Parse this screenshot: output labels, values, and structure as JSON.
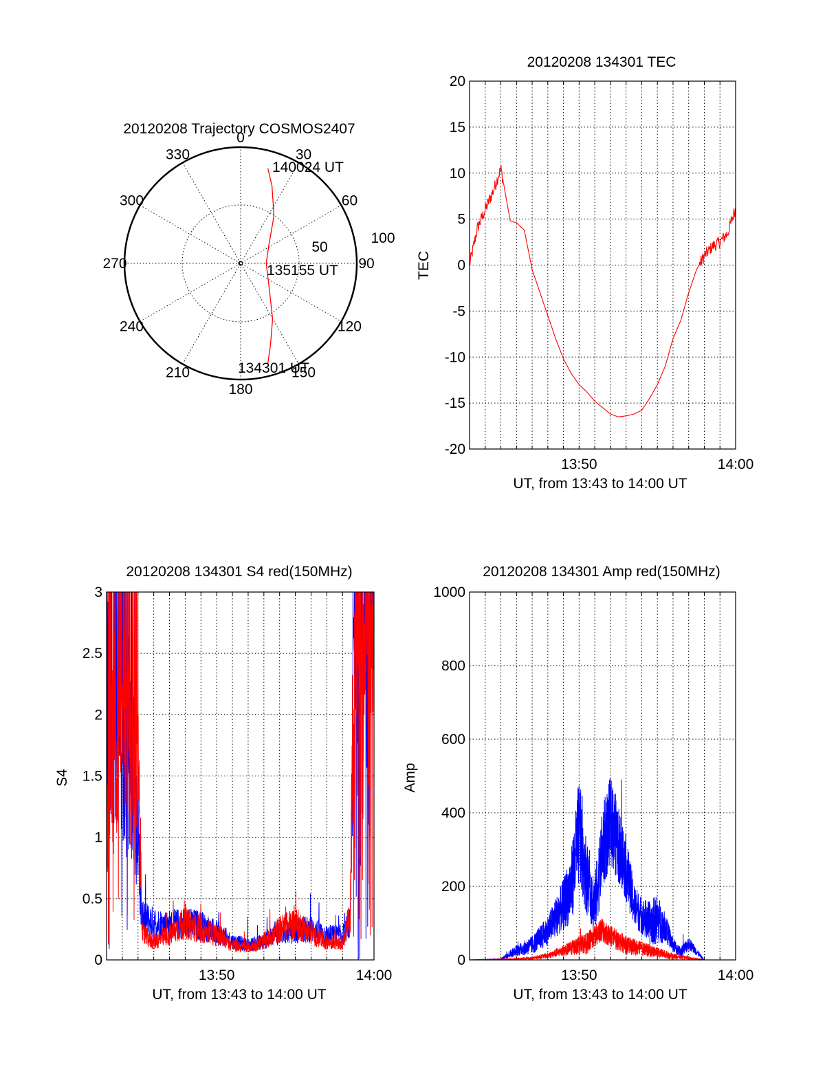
{
  "chart_data": [
    {
      "id": "trajectory",
      "type": "polar",
      "title": "20120208 Trajectory COSMOS2407",
      "azimuth_labels": [
        "0",
        "30",
        "60",
        "90",
        "120",
        "150",
        "180",
        "210",
        "240",
        "270",
        "300",
        "330"
      ],
      "radial_labels": [
        "50",
        "100"
      ],
      "track_color": "#ff0000",
      "track": [
        {
          "az": 165,
          "r": 90
        },
        {
          "az": 160,
          "r": 75
        },
        {
          "az": 150,
          "r": 55
        },
        {
          "az": 130,
          "r": 32
        },
        {
          "az": 90,
          "r": 22
        },
        {
          "az": 55,
          "r": 30
        },
        {
          "az": 35,
          "r": 50
        },
        {
          "az": 22,
          "r": 72
        },
        {
          "az": 16,
          "r": 85
        }
      ],
      "annotations": [
        {
          "text": "140024 UT",
          "at": "end"
        },
        {
          "text": "135155 UT",
          "at": "middle"
        },
        {
          "text": "134301 UT",
          "at": "start"
        }
      ]
    },
    {
      "id": "tec",
      "type": "line",
      "title": "20120208 134301 TEC",
      "ylabel": "TEC",
      "xlabel": "UT, from 13:43 to 14:00 UT",
      "x_ticks": [
        "13:50",
        "14:00"
      ],
      "y_ticks": [
        "20",
        "15",
        "10",
        "5",
        "0",
        "-5",
        "-10",
        "-15",
        "-20"
      ],
      "xlim": [
        43,
        60
      ],
      "ylim": [
        -20,
        20
      ],
      "grid": true,
      "series": [
        {
          "color": "#ff0000",
          "noisy_until": 45.2,
          "noisy_after": 57.7,
          "x": [
            43.0,
            43.5,
            44.0,
            44.5,
            45.0,
            45.6,
            46.0,
            46.5,
            47.0,
            47.5,
            48.0,
            48.5,
            49.0,
            49.5,
            50.0,
            50.5,
            51.0,
            51.5,
            52.0,
            52.5,
            53.0,
            53.5,
            54.0,
            54.5,
            55.0,
            55.5,
            56.0,
            56.5,
            57.0,
            57.5,
            58.0,
            58.5,
            59.0,
            59.5,
            60.0
          ],
          "y": [
            0,
            4,
            6,
            8,
            10.5,
            4.8,
            4.6,
            3.8,
            -0.5,
            -3.0,
            -5.5,
            -8.0,
            -10.2,
            -11.8,
            -13.0,
            -13.8,
            -14.8,
            -15.5,
            -16.2,
            -16.5,
            -16.4,
            -16.2,
            -15.8,
            -14.5,
            -13.0,
            -11.0,
            -8.0,
            -6.0,
            -3.0,
            -0.5,
            1.0,
            2.0,
            2.5,
            3.5,
            6.2
          ]
        }
      ]
    },
    {
      "id": "s4",
      "type": "line",
      "title": "20120208 134301 S4 red(150MHz)",
      "ylabel": "S4",
      "xlabel": "UT, from 13:43 to 14:00 UT",
      "x_ticks": [
        "13:50",
        "14:00"
      ],
      "y_ticks": [
        "3",
        "2.5",
        "2",
        "1.5",
        "1",
        "0.5",
        "0"
      ],
      "xlim": [
        43,
        60
      ],
      "ylim": [
        0,
        3
      ],
      "grid": true,
      "series": [
        {
          "color": "#0000ff",
          "edge_chaos": [
            [
              43.0,
              44.9
            ],
            [
              58.7,
              60.0
            ]
          ],
          "x": [
            43.0,
            44.0,
            44.9,
            45.2,
            46.0,
            47.0,
            48.0,
            49.0,
            50.0,
            51.0,
            52.0,
            53.0,
            54.0,
            55.0,
            56.0,
            57.0,
            58.0,
            58.5,
            58.7,
            60.0
          ],
          "y": [
            1.5,
            1.7,
            1.4,
            0.35,
            0.3,
            0.28,
            0.3,
            0.28,
            0.22,
            0.15,
            0.12,
            0.15,
            0.22,
            0.24,
            0.25,
            0.2,
            0.2,
            0.3,
            2.5,
            2.8
          ]
        },
        {
          "color": "#ff0000",
          "edge_chaos": [
            [
              43.0,
              45.0
            ],
            [
              58.7,
              60.0
            ]
          ],
          "x": [
            43.0,
            44.0,
            45.0,
            45.3,
            46.0,
            47.0,
            48.0,
            49.0,
            50.0,
            51.0,
            52.0,
            53.0,
            54.0,
            55.0,
            56.0,
            57.0,
            58.0,
            58.5,
            58.7,
            60.0
          ],
          "y": [
            1.5,
            1.8,
            1.5,
            0.2,
            0.15,
            0.2,
            0.3,
            0.25,
            0.2,
            0.12,
            0.1,
            0.15,
            0.25,
            0.3,
            0.22,
            0.14,
            0.15,
            0.35,
            2.5,
            2.8
          ]
        }
      ]
    },
    {
      "id": "amp",
      "type": "line",
      "title": "20120208 134301 Amp red(150MHz)",
      "ylabel": "Amp",
      "xlabel": "UT, from 13:43 to 14:00 UT",
      "x_ticks": [
        "13:50",
        "14:00"
      ],
      "y_ticks": [
        "1000",
        "800",
        "600",
        "400",
        "200",
        "0"
      ],
      "xlim": [
        43,
        60
      ],
      "ylim": [
        0,
        1000
      ],
      "grid": true,
      "series": [
        {
          "color": "#0000ff",
          "x": [
            43.0,
            45.0,
            45.5,
            46.0,
            47.0,
            48.0,
            49.0,
            49.5,
            50.0,
            50.5,
            51.0,
            51.5,
            52.0,
            52.5,
            53.0,
            53.5,
            54.0,
            54.5,
            55.0,
            55.5,
            56.0,
            56.5,
            57.0,
            58.0,
            60.0
          ],
          "y": [
            0,
            2,
            15,
            25,
            40,
            80,
            150,
            200,
            350,
            220,
            150,
            300,
            380,
            320,
            250,
            150,
            120,
            100,
            110,
            90,
            40,
            20,
            45,
            0,
            0
          ],
          "noise": [
            0,
            1,
            10,
            15,
            25,
            40,
            70,
            100,
            150,
            100,
            80,
            120,
            120,
            110,
            90,
            60,
            50,
            60,
            70,
            40,
            20,
            15,
            20,
            0,
            0
          ]
        },
        {
          "color": "#ff0000",
          "x": [
            43.0,
            45.5,
            47.0,
            48.0,
            49.0,
            50.0,
            50.5,
            51.0,
            51.5,
            52.0,
            53.0,
            54.0,
            55.0,
            56.0,
            57.0,
            58.0,
            60.0
          ],
          "y": [
            0,
            2,
            5,
            12,
            25,
            40,
            45,
            65,
            80,
            65,
            40,
            30,
            20,
            10,
            5,
            0,
            0
          ],
          "noise": [
            0,
            1,
            4,
            8,
            15,
            25,
            30,
            30,
            35,
            30,
            25,
            20,
            15,
            8,
            4,
            0,
            0
          ]
        }
      ]
    }
  ]
}
